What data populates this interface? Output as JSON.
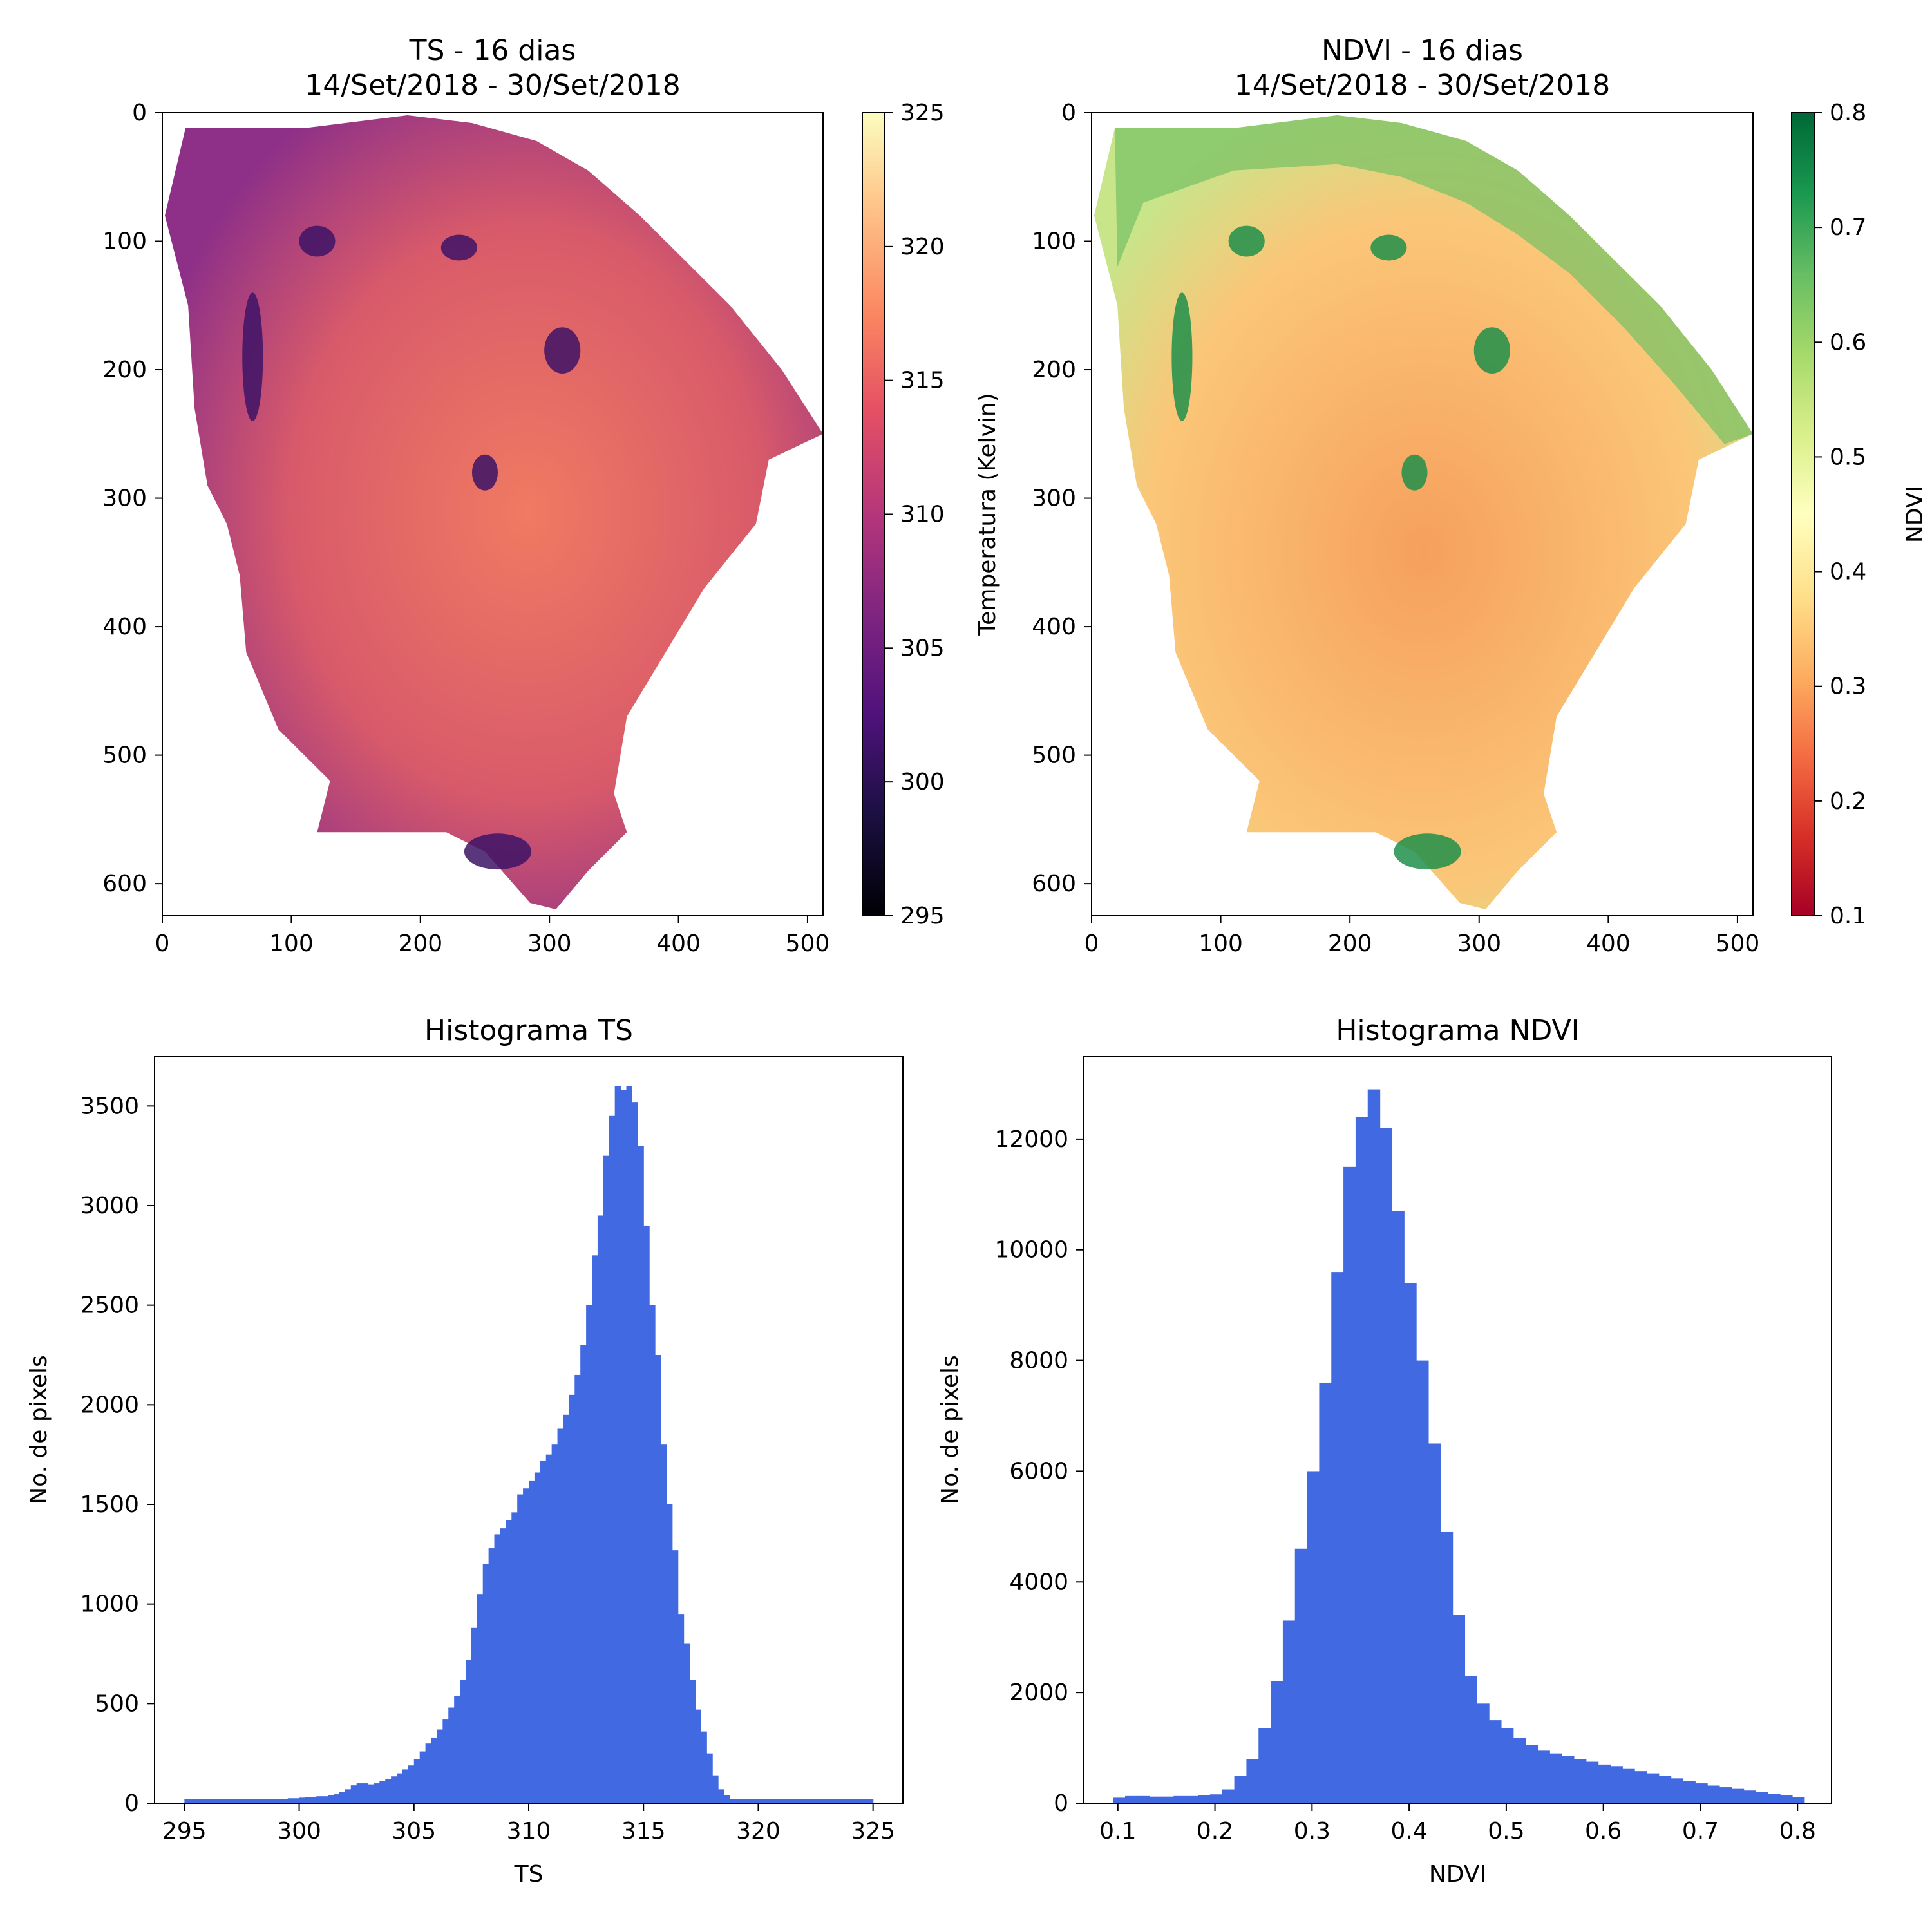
{
  "chart_data": [
    {
      "type": "heatmap",
      "title": "TS - 16 dias",
      "subtitle": "14/Set/2018 - 30/Set/2018",
      "xlim": [
        0,
        512
      ],
      "ylim": [
        625,
        0
      ],
      "xticks": [
        0,
        100,
        200,
        300,
        400,
        500
      ],
      "yticks": [
        0,
        100,
        200,
        300,
        400,
        500,
        600
      ],
      "colormap": "magma",
      "colorbar": {
        "label": "Temperatura (Kelvin)",
        "range": [
          295,
          325
        ],
        "ticks": [
          295,
          300,
          305,
          310,
          315,
          320,
          325
        ]
      }
    },
    {
      "type": "heatmap",
      "title": "NDVI - 16 dias",
      "subtitle": "14/Set/2018 - 30/Set/2018",
      "xlim": [
        0,
        512
      ],
      "ylim": [
        625,
        0
      ],
      "xticks": [
        0,
        100,
        200,
        300,
        400,
        500
      ],
      "yticks": [
        0,
        100,
        200,
        300,
        400,
        500,
        600
      ],
      "colormap": "RdYlGn",
      "colorbar": {
        "label": "NDVI",
        "range": [
          0.1,
          0.8
        ],
        "ticks": [
          0.1,
          0.2,
          0.3,
          0.4,
          0.5,
          0.6,
          0.7,
          0.8
        ]
      }
    },
    {
      "type": "bar",
      "title": "Histograma TS",
      "xlabel": "TS",
      "ylabel": "No. de pixels",
      "color": "#4169e1",
      "xlim": [
        293.7,
        326.3
      ],
      "ylim": [
        0,
        3750
      ],
      "xticks": [
        295,
        300,
        305,
        310,
        315,
        320,
        325
      ],
      "yticks": [
        0,
        500,
        1000,
        1500,
        2000,
        2500,
        3000,
        3500
      ],
      "bin_start": 295,
      "bin_end": 325,
      "values": [
        20,
        20,
        20,
        20,
        20,
        20,
        20,
        20,
        20,
        20,
        20,
        20,
        20,
        20,
        20,
        20,
        20,
        20,
        25,
        25,
        28,
        30,
        32,
        35,
        35,
        40,
        45,
        55,
        70,
        90,
        100,
        100,
        95,
        100,
        110,
        120,
        135,
        150,
        170,
        190,
        220,
        260,
        300,
        330,
        370,
        420,
        480,
        540,
        620,
        720,
        880,
        1050,
        1200,
        1280,
        1350,
        1380,
        1420,
        1460,
        1550,
        1580,
        1620,
        1660,
        1720,
        1750,
        1800,
        1880,
        1950,
        2050,
        2150,
        2300,
        2500,
        2750,
        2950,
        3250,
        3450,
        3600,
        3580,
        3600,
        3520,
        3300,
        2900,
        2500,
        2250,
        1800,
        1500,
        1270,
        950,
        800,
        620,
        470,
        360,
        250,
        140,
        70,
        40,
        20,
        20,
        20,
        20,
        20,
        20,
        20,
        20,
        20,
        20,
        20,
        20,
        20,
        20,
        20,
        20,
        20,
        20,
        20,
        20,
        20,
        20,
        20,
        20,
        20
      ]
    },
    {
      "type": "bar",
      "title": "Histograma NDVI",
      "xlabel": "NDVI",
      "ylabel": "No. de pixels",
      "color": "#4169e1",
      "xlim": [
        0.065,
        0.835
      ],
      "ylim": [
        0,
        13500
      ],
      "xticks": [
        0.1,
        0.2,
        0.3,
        0.4,
        0.5,
        0.6,
        0.7,
        0.8
      ],
      "yticks": [
        0,
        2000,
        4000,
        6000,
        8000,
        10000,
        12000
      ],
      "bin_start": 0.095,
      "bin_end": 0.807,
      "values": [
        100,
        130,
        130,
        120,
        120,
        130,
        130,
        140,
        160,
        250,
        500,
        800,
        1350,
        2200,
        3300,
        4600,
        6000,
        7600,
        9600,
        11500,
        12400,
        12900,
        12200,
        10700,
        9400,
        8000,
        6500,
        4900,
        3400,
        2300,
        1800,
        1500,
        1350,
        1180,
        1050,
        950,
        900,
        850,
        800,
        750,
        700,
        660,
        620,
        580,
        540,
        500,
        450,
        400,
        360,
        320,
        290,
        260,
        230,
        200,
        170,
        140,
        110
      ]
    }
  ]
}
